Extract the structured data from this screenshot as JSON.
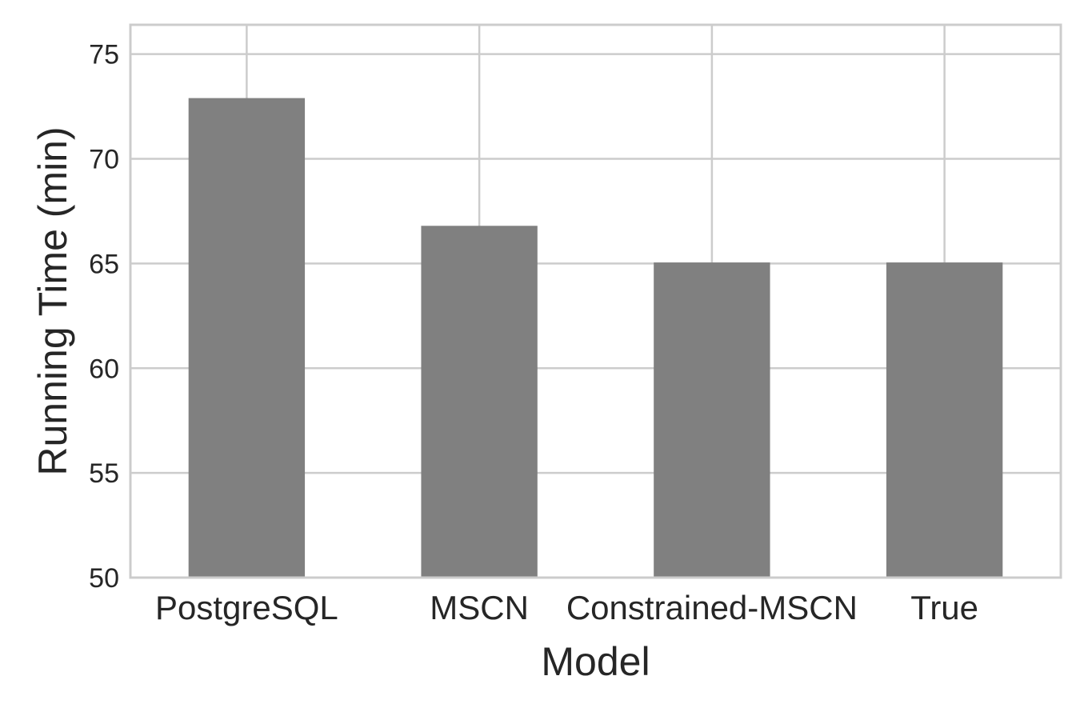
{
  "chart_data": {
    "type": "bar",
    "title": "",
    "xlabel": "Model",
    "ylabel": "Running Time (min)",
    "categories": [
      "PostgreSQL",
      "MSCN",
      "Constrained-MSCN",
      "True"
    ],
    "values": [
      72.9,
      66.8,
      65.05,
      65.05
    ],
    "ylim": [
      50,
      76.4
    ],
    "yticks": [
      50,
      55,
      60,
      65,
      70,
      75
    ],
    "grid": true,
    "legend": "none",
    "bar_color": "#808080",
    "grid_color": "#cccccc",
    "spine_color": "#cccccc",
    "text_color": "#262626"
  }
}
